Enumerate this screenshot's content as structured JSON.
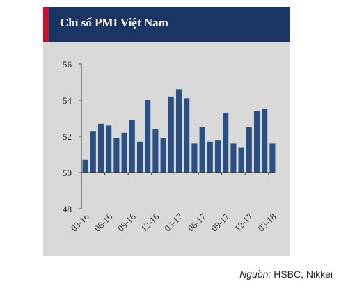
{
  "title": "Chỉ số PMI Việt Nam",
  "source": {
    "label": "Nguồn:",
    "value": "HSBC, Nikkei"
  },
  "colors": {
    "title_bg": "#1a3563",
    "accent": "#c8102e",
    "bar": "#2a4f82",
    "plot_bg": "#d9d9d9"
  },
  "chart_data": {
    "type": "bar",
    "title": "Chỉ số PMI Việt Nam",
    "xlabel": "",
    "ylabel": "",
    "ylim": [
      48,
      56
    ],
    "yticks": [
      "48",
      "50",
      "52",
      "54",
      "56"
    ],
    "xtick_labels": [
      "03-16",
      "06-16",
      "09-16",
      "12-16",
      "03-17",
      "06-17",
      "09-17",
      "12-17",
      "03-18"
    ],
    "categories": [
      "03-16",
      "04-16",
      "05-16",
      "06-16",
      "07-16",
      "08-16",
      "09-16",
      "10-16",
      "11-16",
      "12-16",
      "01-17",
      "02-17",
      "03-17",
      "04-17",
      "05-17",
      "06-17",
      "07-17",
      "08-17",
      "09-17",
      "10-17",
      "11-17",
      "12-17",
      "01-18",
      "02-18",
      "03-18"
    ],
    "values": [
      50.7,
      52.3,
      52.7,
      52.6,
      51.9,
      52.2,
      52.9,
      51.7,
      54.0,
      52.4,
      51.9,
      54.2,
      54.6,
      54.1,
      51.6,
      52.5,
      51.7,
      51.8,
      53.3,
      51.6,
      51.4,
      52.5,
      53.4,
      53.5,
      51.6
    ],
    "grid": false,
    "legend": "none"
  }
}
